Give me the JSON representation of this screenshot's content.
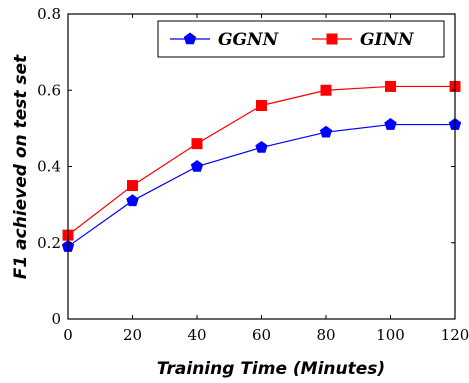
{
  "chart_data": {
    "type": "line",
    "x": [
      0,
      20,
      40,
      60,
      80,
      100,
      120
    ],
    "series": [
      {
        "name": "GGNN",
        "values": [
          0.19,
          0.31,
          0.4,
          0.45,
          0.49,
          0.51,
          0.51
        ],
        "color": "#0000ff",
        "marker": "pentagon"
      },
      {
        "name": "GINN",
        "values": [
          0.22,
          0.35,
          0.46,
          0.56,
          0.6,
          0.61,
          0.61
        ],
        "color": "#ff0000",
        "marker": "square"
      }
    ],
    "xlabel": "Training Time (Minutes)",
    "ylabel": "F1 achieved on test set",
    "xlim": [
      0,
      120
    ],
    "ylim": [
      0,
      0.8
    ],
    "xticks": [
      0,
      20,
      40,
      60,
      80,
      100,
      120
    ],
    "yticks": [
      0,
      0.2,
      0.4,
      0.6,
      0.8
    ],
    "xtick_labels": [
      "0",
      "20",
      "40",
      "60",
      "80",
      "100",
      "120"
    ],
    "ytick_labels": [
      "0",
      "0.2",
      "0.4",
      "0.6",
      "0.8"
    ],
    "grid": false,
    "legend_position": "top-right"
  }
}
